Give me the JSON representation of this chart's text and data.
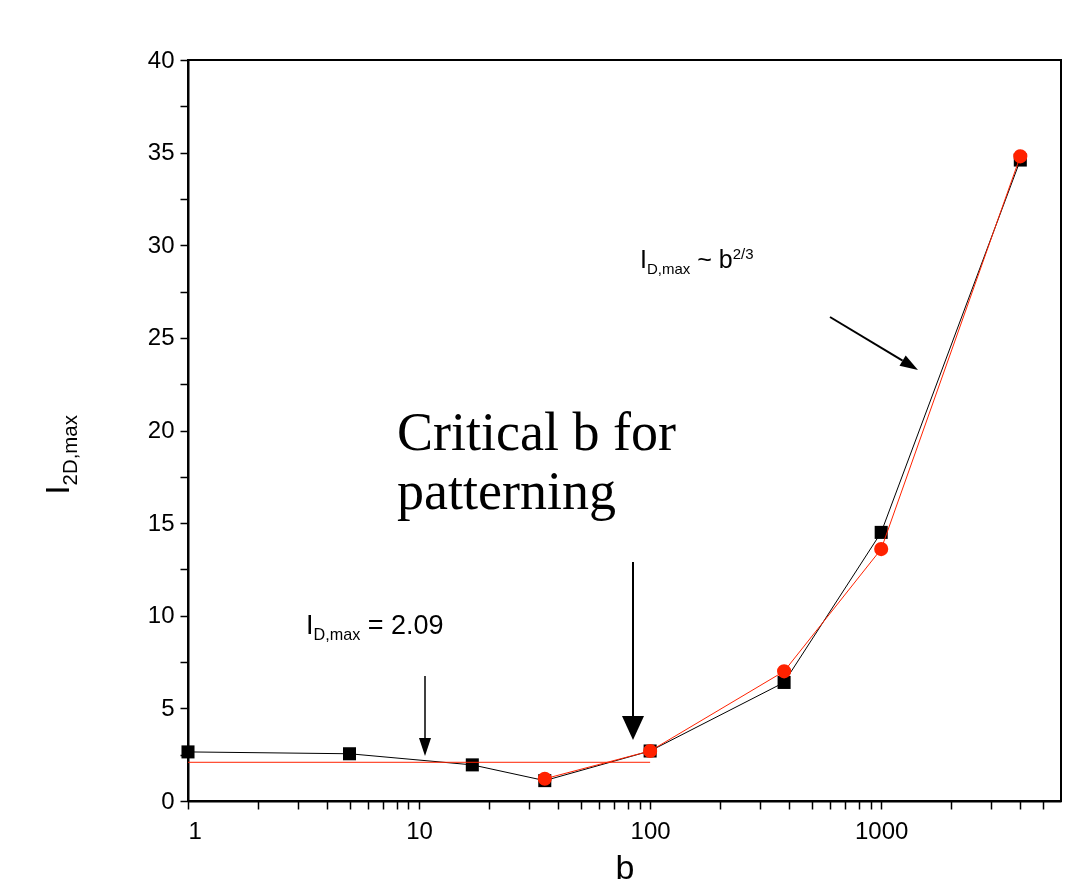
{
  "chart_data": {
    "type": "line",
    "xlabel": "b",
    "ylabel": "I$_{2D,max}$",
    "log": "x",
    "grid": false,
    "xlim": [
      1,
      6000
    ],
    "ylim": [
      0,
      40
    ],
    "xticks": [
      1,
      {
        "value": 2,
        "label": null
      },
      {
        "value": 3,
        "label": null
      },
      {
        "value": 4,
        "label": null
      },
      {
        "value": 5,
        "label": null
      },
      {
        "value": 6,
        "label": null
      },
      {
        "value": 7,
        "label": null
      },
      {
        "value": 8,
        "label": null
      },
      {
        "value": 9,
        "label": null
      },
      10,
      {
        "value": 20,
        "label": null
      },
      {
        "value": 30,
        "label": null
      },
      {
        "value": 40,
        "label": null
      },
      {
        "value": 50,
        "label": null
      },
      {
        "value": 60,
        "label": null
      },
      {
        "value": 70,
        "label": null
      },
      {
        "value": 80,
        "label": null
      },
      {
        "value": 90,
        "label": null
      },
      100,
      {
        "value": 200,
        "label": null
      },
      {
        "value": 300,
        "label": null
      },
      {
        "value": 400,
        "label": null
      },
      {
        "value": 500,
        "label": null
      },
      {
        "value": 600,
        "label": null
      },
      {
        "value": 700,
        "label": null
      },
      {
        "value": 800,
        "label": null
      },
      {
        "value": 900,
        "label": null
      },
      1000,
      {
        "value": 2000,
        "label": null
      },
      {
        "value": 3000,
        "label": null
      },
      {
        "value": 4000,
        "label": null
      },
      {
        "value": 5000,
        "label": null
      }
    ],
    "yticks": [
      0,
      {
        "value": 2.5,
        "label": null
      },
      5,
      {
        "value": 7.5,
        "label": null
      },
      10,
      {
        "value": 12.5,
        "label": null
      },
      15,
      {
        "value": 17.5,
        "label": null
      },
      20,
      {
        "value": 22.5,
        "label": null
      },
      25,
      {
        "value": 27.5,
        "label": null
      },
      30,
      {
        "value": 32.5,
        "label": null
      },
      35,
      {
        "value": 37.5,
        "label": null
      },
      40
    ],
    "series": [
      {
        "color": "#000000",
        "marker": "square",
        "x": [
          1,
          5,
          17,
          35,
          100,
          380,
          1000,
          4000
        ],
        "values": [
          2.65,
          2.55,
          1.95,
          1.1,
          2.7,
          6.4,
          14.5,
          34.6
        ]
      },
      {
        "color": "#ff2200",
        "marker": "circle",
        "x": [
          35,
          100,
          380,
          1000,
          4000
        ],
        "values": [
          1.2,
          2.7,
          7.0,
          13.6,
          34.8
        ]
      },
      {
        "color": "#ff2200",
        "marker": "none",
        "x": [
          1,
          100
        ],
        "values": [
          2.09,
          2.09
        ]
      }
    ],
    "annotations": [
      "I$_{D,max}$ = 2.09",
      "Critical b for patterning",
      "I$_{D,max}$ ~  b$^{2/3}$"
    ]
  }
}
